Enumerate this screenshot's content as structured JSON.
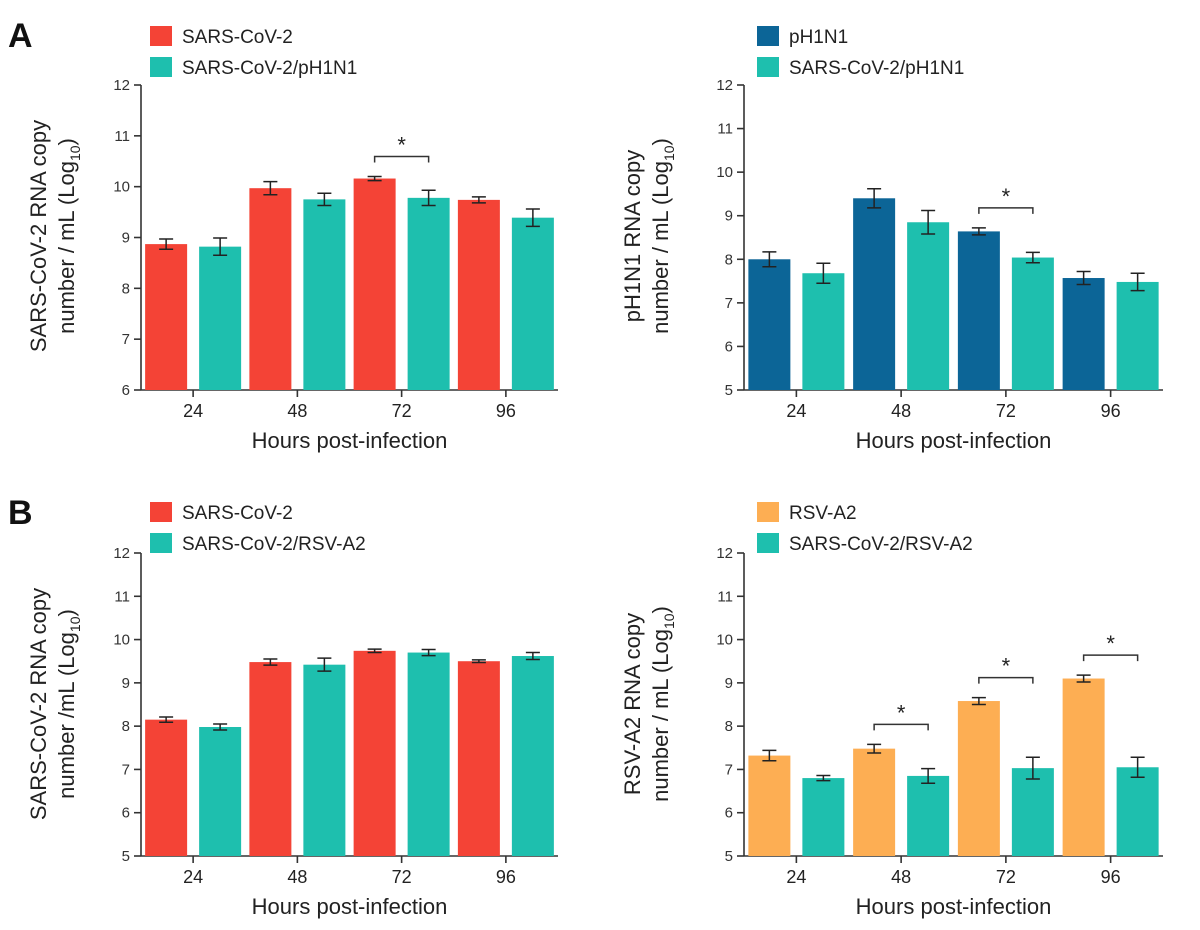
{
  "colors": {
    "red": "#f44336",
    "teal": "#1ebfae",
    "blue": "#0c6597",
    "orange": "#fdae53"
  },
  "panel_labels": [
    "A",
    "B"
  ],
  "chart_data": [
    {
      "type": "bar",
      "panel": "A",
      "ylabel_lines": [
        "SARS-CoV-2 RNA copy",
        "number / mL (Log",
        "10",
        ")"
      ],
      "xlabel": "Hours post-infection",
      "categories": [
        "24",
        "48",
        "72",
        "96"
      ],
      "ylim": [
        6,
        12
      ],
      "yticks": [
        6,
        7,
        8,
        9,
        10,
        11,
        12
      ],
      "series": [
        {
          "name": "SARS-CoV-2",
          "color": "#f44336",
          "values": [
            8.87,
            9.97,
            10.16,
            9.74
          ],
          "errors": [
            0.1,
            0.13,
            0.04,
            0.06
          ]
        },
        {
          "name": "SARS-CoV-2/pH1N1",
          "color": "#1ebfae",
          "values": [
            8.82,
            9.75,
            9.78,
            9.39
          ],
          "errors": [
            0.17,
            0.12,
            0.15,
            0.17
          ]
        }
      ],
      "significance": [
        {
          "category": "72",
          "label": "*"
        }
      ]
    },
    {
      "type": "bar",
      "panel": "",
      "ylabel_lines": [
        "pH1N1 RNA copy",
        "number / mL (Log",
        "10",
        ")"
      ],
      "xlabel": "Hours post-infection",
      "categories": [
        "24",
        "48",
        "72",
        "96"
      ],
      "ylim": [
        5,
        12
      ],
      "yticks": [
        5,
        6,
        7,
        8,
        9,
        10,
        11,
        12
      ],
      "series": [
        {
          "name": "pH1N1",
          "color": "#0c6597",
          "values": [
            8.0,
            9.4,
            8.64,
            7.57
          ],
          "errors": [
            0.17,
            0.22,
            0.08,
            0.15
          ]
        },
        {
          "name": "SARS-CoV-2/pH1N1",
          "color": "#1ebfae",
          "values": [
            7.68,
            8.85,
            8.04,
            7.48
          ],
          "errors": [
            0.23,
            0.27,
            0.12,
            0.2
          ]
        }
      ],
      "significance": [
        {
          "category": "72",
          "label": "*"
        }
      ]
    },
    {
      "type": "bar",
      "panel": "B",
      "ylabel_lines": [
        "SARS-CoV-2 RNA copy",
        "number /mL (Log",
        "10",
        ")"
      ],
      "xlabel": "Hours post-infection",
      "categories": [
        "24",
        "48",
        "72",
        "96"
      ],
      "ylim": [
        5,
        12
      ],
      "yticks": [
        5,
        6,
        7,
        8,
        9,
        10,
        11,
        12
      ],
      "series": [
        {
          "name": "SARS-CoV-2",
          "color": "#f44336",
          "values": [
            8.15,
            9.48,
            9.74,
            9.5
          ],
          "errors": [
            0.06,
            0.07,
            0.04,
            0.03
          ]
        },
        {
          "name": "SARS-CoV-2/RSV-A2",
          "color": "#1ebfae",
          "values": [
            7.98,
            9.42,
            9.7,
            9.62
          ],
          "errors": [
            0.07,
            0.15,
            0.07,
            0.08
          ]
        }
      ],
      "significance": []
    },
    {
      "type": "bar",
      "panel": "",
      "ylabel_lines": [
        "RSV-A2 RNA copy",
        "number / mL (Log",
        "10",
        ")"
      ],
      "xlabel": "Hours post-infection",
      "categories": [
        "24",
        "48",
        "72",
        "96"
      ],
      "ylim": [
        5,
        12
      ],
      "yticks": [
        5,
        6,
        7,
        8,
        9,
        10,
        11,
        12
      ],
      "series": [
        {
          "name": "RSV-A2",
          "color": "#fdae53",
          "values": [
            7.32,
            7.48,
            8.58,
            9.1
          ],
          "errors": [
            0.12,
            0.1,
            0.08,
            0.08
          ]
        },
        {
          "name": "SARS-CoV-2/RSV-A2",
          "color": "#1ebfae",
          "values": [
            6.8,
            6.85,
            7.03,
            7.05
          ],
          "errors": [
            0.06,
            0.17,
            0.25,
            0.23
          ]
        }
      ],
      "significance": [
        {
          "category": "48",
          "label": "*"
        },
        {
          "category": "72",
          "label": "*"
        },
        {
          "category": "96",
          "label": "*"
        }
      ]
    }
  ]
}
